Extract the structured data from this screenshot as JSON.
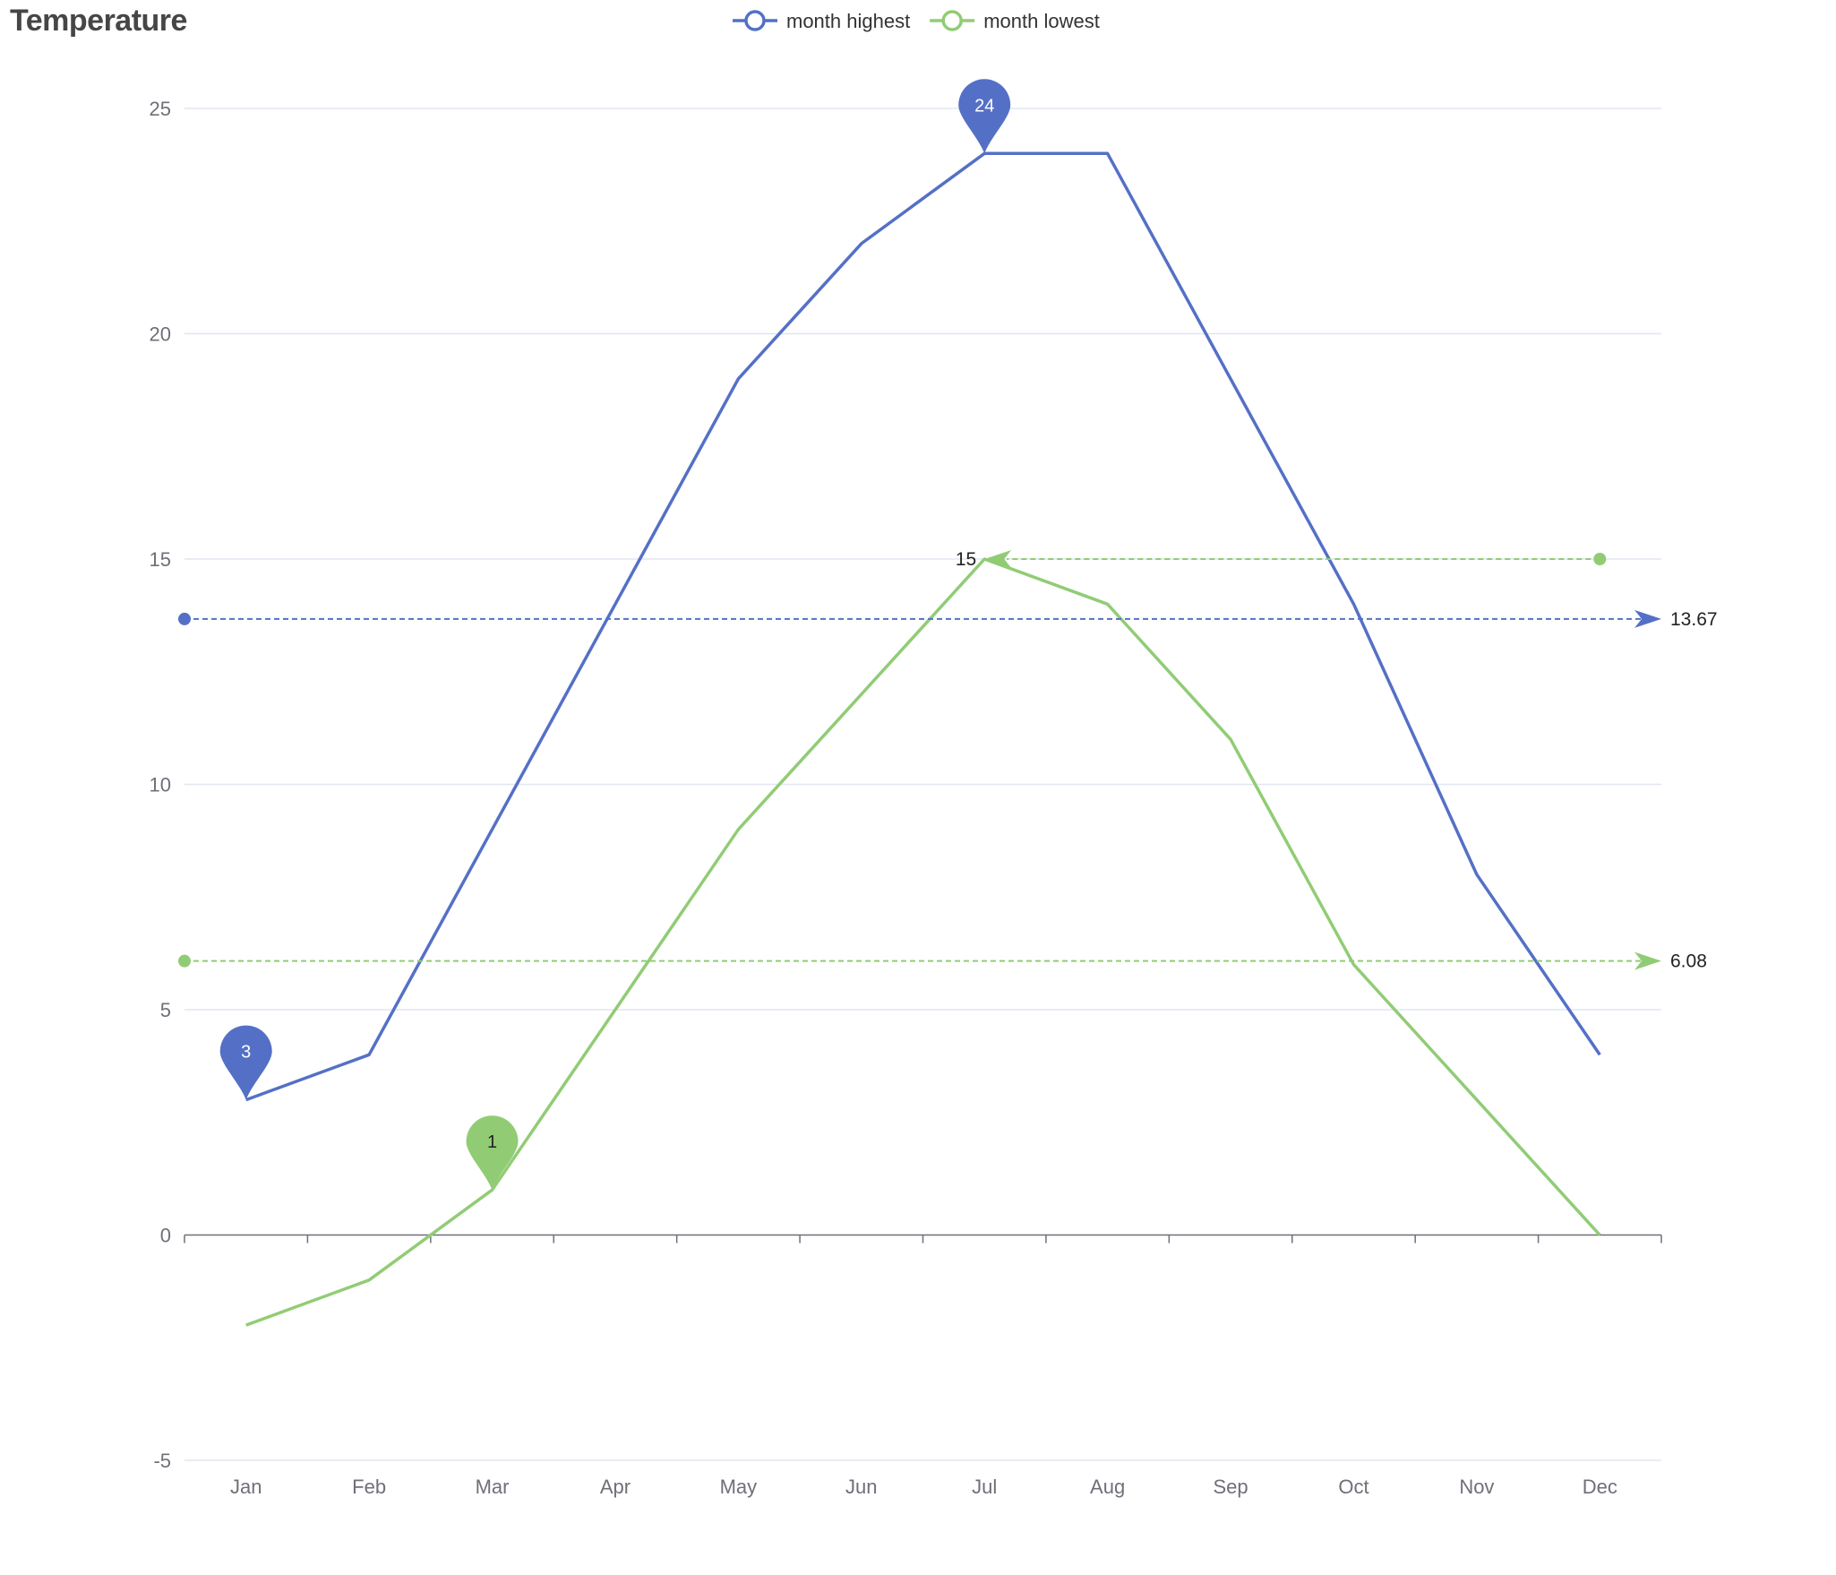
{
  "chart_data": {
    "type": "line",
    "title": "Temperature",
    "categories": [
      "Jan",
      "Feb",
      "Mar",
      "Apr",
      "May",
      "Jun",
      "Jul",
      "Aug",
      "Sep",
      "Oct",
      "Nov",
      "Dec"
    ],
    "ylim": [
      -5,
      25
    ],
    "yticks": [
      -5,
      0,
      5,
      10,
      15,
      20,
      25
    ],
    "grid": true,
    "legend_position": "top-center",
    "series": [
      {
        "name": "month highest",
        "color": "#5470c6",
        "values": [
          3,
          4,
          9,
          14,
          19,
          22,
          24,
          24,
          19,
          14,
          8,
          4
        ],
        "mark_points": [
          {
            "label": "24",
            "category": "Jul",
            "value": 24
          },
          {
            "label": "3",
            "category": "Jan",
            "value": 3
          }
        ],
        "mark_lines": [
          {
            "label": "13.67",
            "value": 13.67
          }
        ]
      },
      {
        "name": "month lowest",
        "color": "#91cc75",
        "values": [
          -2,
          -1,
          1,
          5,
          9,
          12,
          15,
          14,
          11,
          6,
          3,
          0
        ],
        "mark_points": [
          {
            "label": "1",
            "category": "Mar",
            "value": 1
          }
        ],
        "mark_lines": [
          {
            "label": "6.08",
            "value": 6.08
          },
          {
            "label": "15",
            "value": 15,
            "from_category": "Dec",
            "to_category": "Jul"
          }
        ]
      }
    ]
  }
}
